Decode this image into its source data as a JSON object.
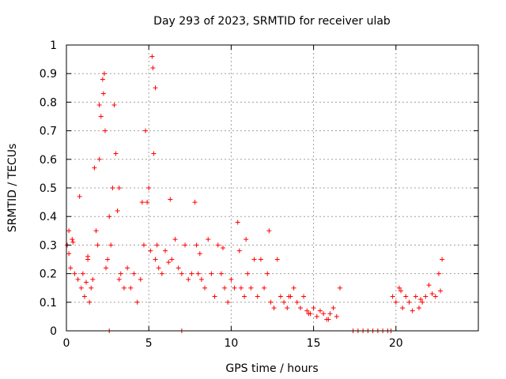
{
  "chart_data": {
    "type": "scatter",
    "title": "Day 293 of 2023, SRMTID for receiver ulab",
    "xlabel": "GPS time / hours",
    "ylabel": "SRMTID / TECUs",
    "xlim": [
      0,
      25
    ],
    "ylim": [
      0,
      1
    ],
    "grid": true,
    "marker": "+",
    "color": "#ff0000",
    "xticks": [
      0,
      5,
      10,
      15,
      20
    ],
    "yticks": [
      0,
      0.1,
      0.2,
      0.3,
      0.4,
      0.5,
      0.6,
      0.7,
      0.8,
      0.9,
      1
    ],
    "xtick_labels": [
      "0",
      "5",
      "10",
      "15",
      "20"
    ],
    "ytick_labels": [
      "0",
      "0.1",
      "0.2",
      "0.3",
      "0.4",
      "0.5",
      "0.6",
      "0.7",
      "0.8",
      "0.9",
      "1"
    ],
    "series": [
      {
        "name": "SRMTID",
        "x": [
          0.05,
          0.15,
          0.25,
          0.35,
          0.5,
          0.7,
          0.8,
          0.9,
          1.0,
          1.1,
          1.2,
          1.3,
          1.4,
          1.5,
          1.6,
          1.7,
          1.8,
          1.9,
          2.0,
          2.1,
          2.2,
          2.25,
          2.3,
          2.35,
          2.4,
          2.5,
          2.6,
          2.7,
          2.8,
          2.9,
          3.0,
          3.1,
          3.2,
          3.3,
          3.5,
          3.7,
          3.9,
          4.1,
          4.3,
          4.5,
          4.7,
          4.8,
          4.9,
          5.0,
          5.1,
          5.2,
          5.25,
          5.3,
          5.4,
          5.5,
          5.6,
          5.8,
          6.0,
          6.2,
          6.4,
          6.6,
          6.8,
          7.0,
          7.2,
          7.4,
          7.6,
          7.8,
          7.9,
          8.0,
          8.2,
          8.4,
          8.6,
          8.8,
          9.0,
          9.2,
          9.4,
          9.6,
          9.8,
          10.0,
          10.2,
          10.4,
          10.5,
          10.6,
          10.8,
          11.0,
          11.2,
          11.4,
          11.6,
          11.8,
          12.0,
          12.2,
          12.4,
          12.6,
          12.8,
          13.0,
          13.2,
          13.4,
          13.6,
          13.8,
          14.0,
          14.2,
          14.4,
          14.6,
          14.8,
          15.0,
          15.2,
          15.4,
          15.6,
          15.8,
          16.0,
          16.2,
          16.4,
          16.6,
          17.4,
          17.7,
          18.0,
          18.3,
          18.6,
          18.9,
          19.2,
          19.5,
          19.7,
          19.8,
          20.0,
          20.2,
          20.4,
          20.6,
          20.8,
          21.0,
          21.2,
          21.4,
          21.6,
          21.8,
          22.0,
          22.2,
          22.4,
          22.6,
          22.8,
          2.6,
          7.0,
          0.15,
          0.4,
          1.3,
          2.0,
          3.2,
          4.6,
          5.4,
          6.3,
          8.1,
          9.5,
          10.9,
          12.3,
          13.5,
          14.7,
          15.9,
          20.3,
          21.5,
          22.7
        ],
        "y": [
          0.3,
          0.27,
          0.22,
          0.32,
          0.2,
          0.18,
          0.47,
          0.15,
          0.2,
          0.12,
          0.17,
          0.25,
          0.1,
          0.15,
          0.18,
          0.57,
          0.35,
          0.3,
          0.6,
          0.75,
          0.88,
          0.83,
          0.9,
          0.7,
          0.22,
          0.25,
          0.4,
          0.3,
          0.5,
          0.79,
          0.62,
          0.42,
          0.18,
          0.2,
          0.15,
          0.22,
          0.15,
          0.2,
          0.1,
          0.18,
          0.3,
          0.7,
          0.45,
          0.5,
          0.28,
          0.96,
          0.92,
          0.62,
          0.25,
          0.3,
          0.22,
          0.2,
          0.28,
          0.24,
          0.25,
          0.32,
          0.22,
          0.2,
          0.3,
          0.18,
          0.2,
          0.45,
          0.3,
          0.2,
          0.18,
          0.15,
          0.32,
          0.2,
          0.12,
          0.3,
          0.2,
          0.15,
          0.1,
          0.18,
          0.15,
          0.38,
          0.28,
          0.15,
          0.12,
          0.2,
          0.15,
          0.25,
          0.12,
          0.25,
          0.15,
          0.2,
          0.1,
          0.08,
          0.25,
          0.12,
          0.1,
          0.08,
          0.12,
          0.15,
          0.1,
          0.08,
          0.12,
          0.07,
          0.06,
          0.08,
          0.05,
          0.07,
          0.06,
          0.04,
          0.06,
          0.08,
          0.05,
          0.15,
          0,
          0,
          0,
          0,
          0,
          0,
          0,
          0,
          0,
          0.12,
          0.1,
          0.15,
          0.08,
          0.12,
          0.1,
          0.07,
          0.12,
          0.08,
          0.1,
          0.12,
          0.16,
          0.13,
          0.12,
          0.2,
          0.25,
          0,
          0,
          0.35,
          0.31,
          0.26,
          0.79,
          0.5,
          0.45,
          0.85,
          0.46,
          0.27,
          0.29,
          0.32,
          0.35,
          0.12,
          0.06,
          0.04,
          0.14,
          0.11,
          0.14
        ]
      }
    ]
  }
}
